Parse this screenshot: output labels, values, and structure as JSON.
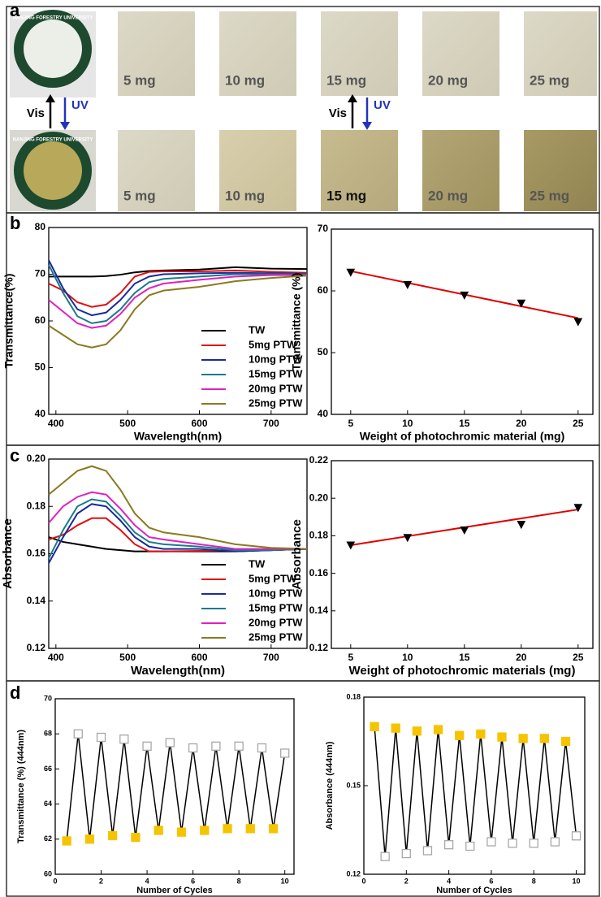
{
  "panel_labels": [
    "a",
    "b",
    "c",
    "d"
  ],
  "panel_a": {
    "badge_text": "NANJING FORESTRY UNIVERSITY",
    "top_labels": [
      "5 mg",
      "10 mg",
      "15 mg",
      "20 mg",
      "25 mg"
    ],
    "bottom_labels": [
      "5 mg",
      "10 mg",
      "15 mg",
      "20 mg",
      "25 mg"
    ],
    "arrows": [
      "Vis",
      "UV"
    ]
  },
  "chart_data": [
    {
      "type": "line",
      "xlabel": "Wavelength(nm)",
      "ylabel": "Transmittance(%)",
      "x": [
        390,
        410,
        430,
        450,
        470,
        490,
        510,
        530,
        550,
        600,
        650,
        700,
        750
      ],
      "xlim": [
        390,
        750
      ],
      "ylim": [
        40,
        80
      ],
      "xticks": [
        400,
        500,
        600,
        700
      ],
      "yticks": [
        40,
        50,
        60,
        70,
        80
      ],
      "legend": "lower right",
      "series": [
        {
          "name": "TW",
          "color": "#000000",
          "values": [
            69.5,
            69.5,
            69.5,
            69.5,
            69.6,
            69.9,
            70.4,
            70.7,
            70.8,
            71,
            71.5,
            71.2,
            71.1
          ]
        },
        {
          "name": "5mg PTW",
          "color": "#e01010",
          "values": [
            68,
            66.5,
            64,
            63,
            63.5,
            66,
            69.5,
            70.5,
            70.6,
            70.6,
            70.8,
            70.5,
            70.3
          ]
        },
        {
          "name": "10mg PTW",
          "color": "#1a2a9a",
          "values": [
            73,
            67,
            62.5,
            61.2,
            61.8,
            64.5,
            68,
            69.5,
            70,
            70.2,
            70.3,
            70.2,
            70.1
          ]
        },
        {
          "name": "15mg PTW",
          "color": "#1a7a8a",
          "values": [
            72,
            66,
            61,
            59.5,
            60,
            62.5,
            66,
            68.3,
            69,
            69.5,
            70,
            70,
            70
          ]
        },
        {
          "name": "20mg PTW",
          "color": "#e020c0",
          "values": [
            64.5,
            62,
            59.5,
            58.5,
            59,
            61.5,
            65,
            67,
            68,
            68.8,
            69.5,
            69.8,
            69.8
          ]
        },
        {
          "name": "25mg PTW",
          "color": "#8a7a20",
          "values": [
            59,
            57,
            55,
            54.3,
            55,
            58,
            62.5,
            65.5,
            66.5,
            67.3,
            68.5,
            69.2,
            69.7
          ]
        }
      ]
    },
    {
      "type": "scatter",
      "xlabel": "Weight of photochromic material (mg)",
      "ylabel": "Transmittance (%)",
      "xlim": [
        3.3,
        26.3
      ],
      "ylim": [
        40,
        70
      ],
      "xticks": [
        5,
        10,
        15,
        20,
        25
      ],
      "yticks": [
        40,
        50,
        60,
        70
      ],
      "series": [
        {
          "x": [
            5,
            10,
            15,
            20,
            25
          ],
          "values": [
            63,
            61,
            59.3,
            58,
            55
          ],
          "color": "#000000",
          "marker": "triangle-down",
          "filled": true
        }
      ],
      "fit": {
        "x": [
          5,
          25
        ],
        "values": [
          63.2,
          55.6
        ],
        "color": "#e00000"
      }
    },
    {
      "type": "line",
      "xlabel": "Wavelength(nm)",
      "ylabel": "Absorbance",
      "x": [
        390,
        410,
        430,
        450,
        470,
        490,
        510,
        530,
        550,
        600,
        650,
        700,
        750
      ],
      "xlim": [
        390,
        750
      ],
      "ylim": [
        0.12,
        0.2
      ],
      "xticks": [
        400,
        500,
        600,
        700
      ],
      "yticks": [
        0.12,
        0.14,
        0.16,
        0.18,
        {
          "value": 0.2,
          "label": "0.20"
        }
      ],
      "legend": "lower right",
      "series": [
        {
          "name": "TW",
          "color": "#000000",
          "values": [
            0.167,
            0.165,
            0.164,
            0.163,
            0.162,
            0.1615,
            0.161,
            0.161,
            0.161,
            0.161,
            0.161,
            0.1615,
            0.162
          ]
        },
        {
          "name": "5mg PTW",
          "color": "#e01010",
          "values": [
            0.166,
            0.168,
            0.172,
            0.175,
            0.175,
            0.17,
            0.164,
            0.161,
            0.161,
            0.1612,
            0.1615,
            0.1615,
            0.162
          ]
        },
        {
          "name": "10mg PTW",
          "color": "#1a2a9a",
          "values": [
            0.156,
            0.167,
            0.177,
            0.181,
            0.18,
            0.174,
            0.167,
            0.163,
            0.162,
            0.162,
            0.161,
            0.1615,
            0.162
          ]
        },
        {
          "name": "15mg PTW",
          "color": "#1a7a8a",
          "values": [
            0.158,
            0.17,
            0.18,
            0.183,
            0.182,
            0.176,
            0.169,
            0.165,
            0.164,
            0.163,
            0.1615,
            0.1615,
            0.162
          ]
        },
        {
          "name": "20mg PTW",
          "color": "#e020c0",
          "values": [
            0.173,
            0.18,
            0.184,
            0.186,
            0.185,
            0.179,
            0.172,
            0.167,
            0.166,
            0.164,
            0.162,
            0.162,
            0.162
          ]
        },
        {
          "name": "25mg PTW",
          "color": "#8a7a20",
          "values": [
            0.185,
            0.19,
            0.195,
            0.197,
            0.195,
            0.187,
            0.177,
            0.171,
            0.169,
            0.167,
            0.164,
            0.1625,
            0.162
          ]
        }
      ]
    },
    {
      "type": "scatter",
      "xlabel": "Weight of photochromic materials (mg)",
      "ylabel": "Absorbance",
      "xlim": [
        3.3,
        26.3
      ],
      "ylim": [
        0.12,
        0.22
      ],
      "xticks": [
        5,
        10,
        15,
        20,
        25
      ],
      "yticks": [
        0.12,
        0.14,
        0.16,
        0.18,
        {
          "value": 0.2,
          "label": "0.20"
        },
        0.22
      ],
      "series": [
        {
          "x": [
            5,
            10,
            15,
            20,
            25
          ],
          "values": [
            0.175,
            0.179,
            0.183,
            0.186,
            0.195
          ],
          "color": "#000000",
          "marker": "triangle-down",
          "filled": true
        }
      ],
      "fit": {
        "x": [
          5,
          25
        ],
        "values": [
          0.175,
          0.194
        ],
        "color": "#e00000"
      }
    },
    {
      "type": "scatter",
      "connect": true,
      "xlabel": "Number of Cycles",
      "ylabel": "Transmittance (%) (444nm)",
      "xlim": [
        0,
        10.4
      ],
      "ylim": [
        60,
        70
      ],
      "xticks": [
        0,
        2,
        4,
        6,
        8,
        10
      ],
      "yticks": [
        60,
        62,
        64,
        66,
        68,
        70
      ],
      "series": [
        {
          "x": [
            0.5,
            1.5,
            2.5,
            3.5,
            4.5,
            5.5,
            6.5,
            7.5,
            8.5,
            9.5
          ],
          "values": [
            61.9,
            62,
            62.2,
            62.1,
            62.5,
            62.4,
            62.5,
            62.6,
            62.6,
            62.6
          ],
          "color": "#f5c400",
          "marker": "square",
          "filled": true
        },
        {
          "x": [
            1,
            2,
            3,
            4,
            5,
            6,
            7,
            8,
            9,
            10
          ],
          "values": [
            68,
            67.8,
            67.7,
            67.3,
            67.5,
            67.2,
            67.3,
            67.3,
            67.2,
            66.9
          ],
          "color": "#a8a8a8",
          "marker": "square",
          "filled": false
        }
      ]
    },
    {
      "type": "scatter",
      "connect": true,
      "xlabel": "Number of Cycles",
      "ylabel": "Absorbance (444nm)",
      "xlim": [
        0,
        10.4
      ],
      "ylim": [
        0.12,
        0.18
      ],
      "xticks": [
        0,
        2,
        4,
        6,
        8,
        10
      ],
      "yticks": [
        0.12,
        0.15,
        0.18
      ],
      "series": [
        {
          "x": [
            0.5,
            1.5,
            2.5,
            3.5,
            4.5,
            5.5,
            6.5,
            7.5,
            8.5,
            9.5
          ],
          "values": [
            0.17,
            0.1695,
            0.1685,
            0.169,
            0.167,
            0.1675,
            0.1665,
            0.166,
            0.166,
            0.165
          ],
          "color": "#f5c400",
          "marker": "square",
          "filled": true
        },
        {
          "x": [
            1,
            2,
            3,
            4,
            5,
            6,
            7,
            8,
            9,
            10
          ],
          "values": [
            0.126,
            0.127,
            0.128,
            0.13,
            0.1295,
            0.131,
            0.1305,
            0.1305,
            0.131,
            0.133
          ],
          "color": "#a8a8a8",
          "marker": "square",
          "filled": false
        }
      ]
    }
  ]
}
